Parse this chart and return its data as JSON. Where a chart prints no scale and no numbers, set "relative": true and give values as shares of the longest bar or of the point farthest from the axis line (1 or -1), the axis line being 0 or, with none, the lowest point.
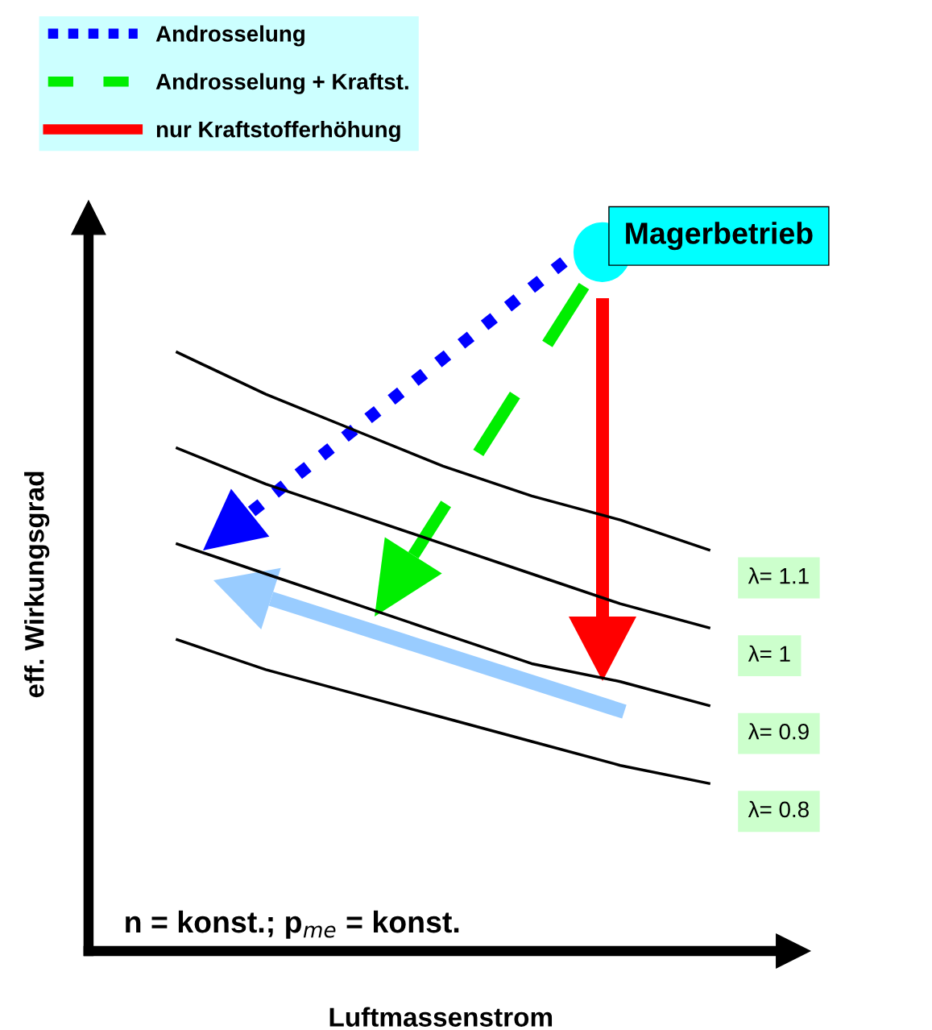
{
  "chart_data": {
    "type": "line",
    "relative": true,
    "xlabel": "Luftmassenstrom",
    "ylabel": "eff. Wirkungsgrad",
    "categories": [
      null,
      null,
      null,
      null,
      null,
      null,
      null
    ],
    "series": [
      {
        "name": "λ= 1.1",
        "color": "#000000",
        "values": [
          1,
          0.93,
          0.87,
          0.81,
          0.76,
          0.72,
          0.67
        ]
      },
      {
        "name": "λ= 1",
        "color": "#000000",
        "values": [
          0.84,
          0.78,
          0.73,
          0.68,
          0.63,
          0.58,
          0.54
        ]
      },
      {
        "name": "λ= 0.9",
        "color": "#000000",
        "values": [
          0.68,
          0.63,
          0.58,
          0.53,
          0.48,
          0.45,
          0.41
        ]
      },
      {
        "name": "λ= 0.8",
        "color": "#000000",
        "values": [
          0.52,
          0.47,
          0.43,
          0.39,
          0.35,
          0.31,
          0.28
        ]
      }
    ],
    "annotations": [
      "Androsselung",
      "Androsselung + Kraftst.",
      "nur Kraftstofferhöhung",
      "Magerbetrieb",
      "n = konst.; p$_{me}$ = konst."
    ],
    "legend": "right",
    "grid": false,
    "tick_labels": false
  }
}
